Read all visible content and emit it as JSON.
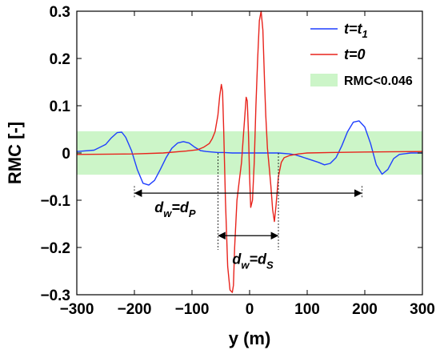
{
  "chart_data": {
    "type": "line",
    "xlabel": "y (m)",
    "ylabel": "RMC [-]",
    "xlim": [
      -300,
      300
    ],
    "ylim": [
      -0.3,
      0.3
    ],
    "xticks": [
      -300,
      -200,
      -100,
      0,
      100,
      200,
      300
    ],
    "yticks": [
      -0.3,
      -0.2,
      -0.1,
      0,
      0.1,
      0.2,
      0.3
    ],
    "xtick_labels": [
      "−300",
      "−200",
      "−100",
      "0",
      "100",
      "200",
      "300"
    ],
    "ytick_labels": [
      "−0.3",
      "−0.2",
      "−0.1",
      "0",
      "0.1",
      "0.2",
      "0.3"
    ],
    "grid": false,
    "legend_position": "top-right",
    "threshold_band": {
      "label": "RMC<0.046",
      "ymin": -0.046,
      "ymax": 0.046,
      "color": "#ccf5c8"
    },
    "series": [
      {
        "name": "t=t1",
        "color": "#1f3fff",
        "x": [
          -300,
          -270,
          -250,
          -240,
          -230,
          -222,
          -215,
          -205,
          -195,
          -185,
          -175,
          -165,
          -155,
          -145,
          -135,
          -125,
          -115,
          -105,
          -95,
          -85,
          -75,
          -65,
          -55,
          -45,
          -30,
          0,
          50,
          70,
          80,
          90,
          100,
          110,
          120,
          130,
          140,
          150,
          160,
          170,
          180,
          190,
          200,
          210,
          220,
          230,
          240,
          250,
          260,
          280,
          300
        ],
        "y": [
          0.003,
          0.006,
          0.018,
          0.032,
          0.043,
          0.044,
          0.033,
          0.005,
          -0.035,
          -0.064,
          -0.068,
          -0.058,
          -0.035,
          -0.01,
          0.01,
          0.021,
          0.024,
          0.021,
          0.012,
          0.005,
          0.003,
          0.002,
          0.001,
          0.001,
          0.0,
          0.0,
          0.0,
          -0.002,
          -0.004,
          -0.008,
          -0.012,
          -0.016,
          -0.02,
          -0.025,
          -0.022,
          -0.01,
          0.015,
          0.045,
          0.065,
          0.068,
          0.055,
          0.02,
          -0.025,
          -0.045,
          -0.035,
          -0.012,
          -0.003,
          0.0,
          0.0
        ]
      },
      {
        "name": "t=0",
        "color": "#e8231c",
        "x": [
          -300,
          -200,
          -150,
          -110,
          -90,
          -80,
          -70,
          -65,
          -60,
          -55,
          -52,
          -49,
          -47,
          -45,
          -42,
          -38,
          -34,
          -30,
          -28,
          -26,
          -22,
          -18,
          -14,
          -10,
          -6,
          -4,
          -2,
          0,
          2,
          5,
          8,
          11,
          14,
          17,
          20,
          23,
          26,
          28,
          31,
          34,
          37,
          40,
          43,
          46,
          50,
          55,
          60,
          70,
          85,
          100,
          140,
          200,
          300
        ],
        "y": [
          -0.003,
          -0.002,
          0.0,
          0.004,
          0.007,
          0.012,
          0.02,
          0.03,
          0.045,
          0.08,
          0.12,
          0.145,
          0.13,
          0.05,
          -0.1,
          -0.24,
          -0.29,
          -0.295,
          -0.28,
          -0.2,
          -0.1,
          -0.06,
          -0.02,
          0.05,
          0.118,
          0.11,
          0.04,
          -0.05,
          -0.115,
          -0.1,
          -0.02,
          0.1,
          0.2,
          0.28,
          0.3,
          0.26,
          0.15,
          0.08,
          0.01,
          -0.03,
          -0.07,
          -0.12,
          -0.145,
          -0.11,
          -0.05,
          -0.02,
          -0.01,
          -0.005,
          -0.002,
          0.0,
          0.001,
          0.002,
          0.003
        ]
      }
    ],
    "annotations": [
      {
        "id": "dp",
        "from": -200,
        "to": 195,
        "y": -0.085,
        "label_main": "d",
        "label_sub1": "w",
        "label_eq": "=d",
        "label_sub2": "P",
        "label_x": -165,
        "label_y": -0.125,
        "guide_top": -0.07
      },
      {
        "id": "ds",
        "from": -55,
        "to": 50,
        "y": -0.175,
        "label_main": "d",
        "label_sub1": "w",
        "label_eq": "=d",
        "label_sub2": "S",
        "label_x": -30,
        "label_y": -0.235,
        "guide_top": 0.0,
        "guide_bottom": -0.205
      }
    ]
  },
  "legend": {
    "items": [
      {
        "main": "t=t",
        "sub": "1",
        "color": "#1f3fff",
        "kind": "line"
      },
      {
        "main": "t=0",
        "sub": "",
        "color": "#e8231c",
        "kind": "line"
      },
      {
        "main": "RMC<0.046",
        "sub": "",
        "color": "#ccf5c8",
        "kind": "patch"
      }
    ]
  }
}
